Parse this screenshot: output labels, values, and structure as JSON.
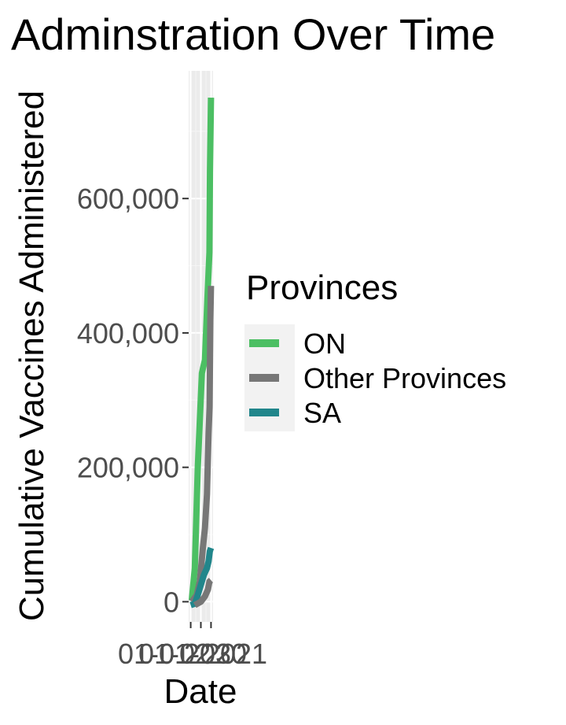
{
  "chart_data": {
    "type": "line",
    "title": "Adminstration Over Time",
    "xlabel": "Date",
    "ylabel": "Cumulative Vaccines Administered",
    "x_tick_labels": [
      "01-01",
      "01-02",
      "01-03",
      "2020",
      "2021"
    ],
    "y_ticks": [
      0,
      200000,
      400000,
      600000
    ],
    "y_tick_labels": [
      "0",
      "200,000",
      "400,000",
      "600,000"
    ],
    "ylim": [
      -30000,
      790000
    ],
    "grid": true,
    "legend": {
      "title": "Provinces",
      "position": "right"
    },
    "series": [
      {
        "name": "ON",
        "color": "#4cbf63",
        "points": [
          [
            0.05,
            2000
          ],
          [
            0.2,
            50000
          ],
          [
            0.35,
            200000
          ],
          [
            0.55,
            340000
          ],
          [
            0.7,
            360000
          ],
          [
            0.82,
            450000
          ],
          [
            0.92,
            520000
          ],
          [
            0.95,
            640000
          ],
          [
            1.0,
            750000
          ]
        ]
      },
      {
        "name": "Other Provinces",
        "color": "#777777",
        "points": [
          [
            0.05,
            0
          ],
          [
            0.3,
            10000
          ],
          [
            0.45,
            30000
          ],
          [
            0.6,
            80000
          ],
          [
            0.7,
            110000
          ],
          [
            0.8,
            160000
          ],
          [
            0.88,
            250000
          ],
          [
            0.93,
            290000
          ],
          [
            0.97,
            420000
          ],
          [
            1.0,
            470000
          ]
        ]
      },
      {
        "name": "SA",
        "color": "#21868b",
        "points": [
          [
            0.0,
            -5000
          ],
          [
            0.2,
            -3000
          ],
          [
            0.35,
            10000
          ],
          [
            0.5,
            25000
          ],
          [
            0.65,
            40000
          ],
          [
            0.8,
            50000
          ],
          [
            0.88,
            60000
          ],
          [
            0.94,
            75000
          ],
          [
            1.0,
            80000
          ]
        ]
      },
      {
        "name": "",
        "color": "#777777",
        "points": [
          [
            0.2,
            -5000
          ],
          [
            0.5,
            0
          ],
          [
            0.7,
            8000
          ],
          [
            0.85,
            18000
          ],
          [
            0.92,
            30000
          ],
          [
            1.0,
            32000
          ]
        ]
      }
    ]
  }
}
